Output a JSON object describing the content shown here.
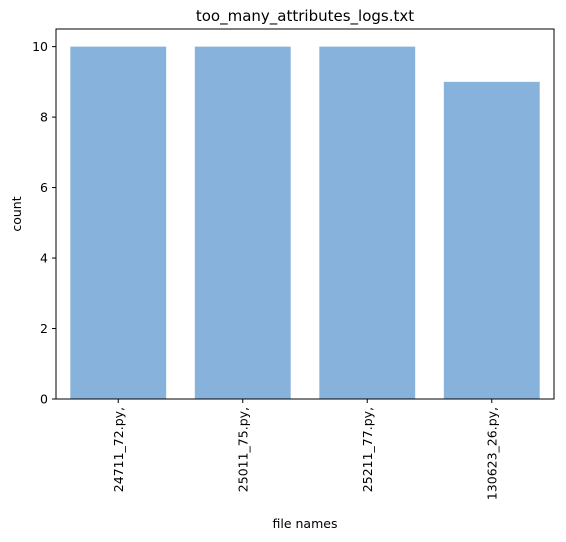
{
  "chart_data": {
    "type": "bar",
    "title": "too_many_attributes_logs.txt",
    "xlabel": "file names",
    "ylabel": "count",
    "categories": [
      "24711_72.py,",
      "25011_75.py,",
      "25211_77.py,",
      "130623_26.py,"
    ],
    "values": [
      10,
      10,
      10,
      9
    ],
    "ylim": [
      0,
      10.5
    ],
    "yticks": [
      0,
      2,
      4,
      6,
      8,
      10
    ],
    "yticklabels": [
      "0",
      "2",
      "4",
      "6",
      "8",
      "10"
    ],
    "bar_color": "#87b2dc",
    "grid": false,
    "legend": null
  }
}
